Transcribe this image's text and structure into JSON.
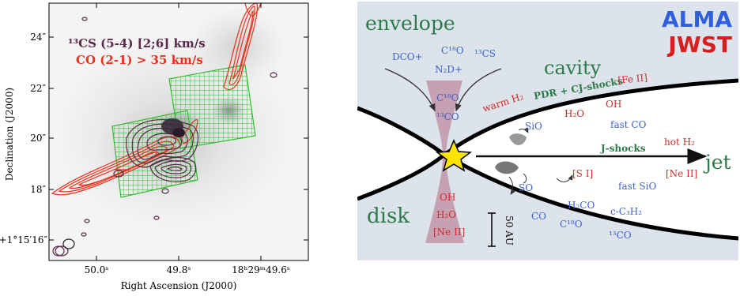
{
  "left": {
    "legend_cs": "¹³CS (5-4) [2;6] km/s",
    "legend_co": "CO (2-1) > 35 km/s",
    "ylabel": "Declination (J2000)",
    "xlabel": "Right Ascension (J2000)",
    "yticks": [
      "24″",
      "22″",
      "20″",
      "18″",
      "+1°15′16″"
    ],
    "xticks": [
      "50.0ˢ",
      "49.8ˢ",
      "18ʰ29ᵐ49.6ˢ"
    ],
    "colors": {
      "cs": "#5a2a4a",
      "co": "#e8321c",
      "grid": "#2fbf2f"
    }
  },
  "right": {
    "title_alma": "ALMA",
    "title_jwst": "JWST",
    "envelope": "envelope",
    "cavity": "cavity",
    "disk": "disk",
    "jet": "jet",
    "scale": "50 AU",
    "mol": {
      "dco": "DCO+",
      "c18o_top": "C¹⁸O",
      "cs13": "¹³CS",
      "n2d": "N₂D+",
      "c18o_mid": "C¹⁸O",
      "co13_mid": "¹³CO",
      "warm_h2": "warm H₂",
      "pdr": "PDR + CJ-shocks",
      "feii": "[Fe II]",
      "h2o_mid": "H₂O",
      "oh_mid": "OH",
      "sio_top": "SiO",
      "fast_co": "fast CO",
      "jshocks": "J-shocks",
      "hot_h2": "hot H₂",
      "si": "[S I]",
      "nevii": "[Ne II]",
      "so": "SO",
      "fast_sio": "fast SiO",
      "oh_low": "OH",
      "h2o_low": "H₂O",
      "neii_low": "[Ne II]",
      "h2co": "H₂CO",
      "cc3h2": "c-C₃H₂",
      "co_low": "CO",
      "c18o_low": "C¹⁸O",
      "co13_low": "¹³CO"
    },
    "colors": {
      "alma": "#2f5fe0",
      "jwst": "#d81e1e",
      "green": "#2a7a4a",
      "blue": "#3c5fd0",
      "red": "#d02a2a",
      "bg": "#dde3ea"
    }
  }
}
